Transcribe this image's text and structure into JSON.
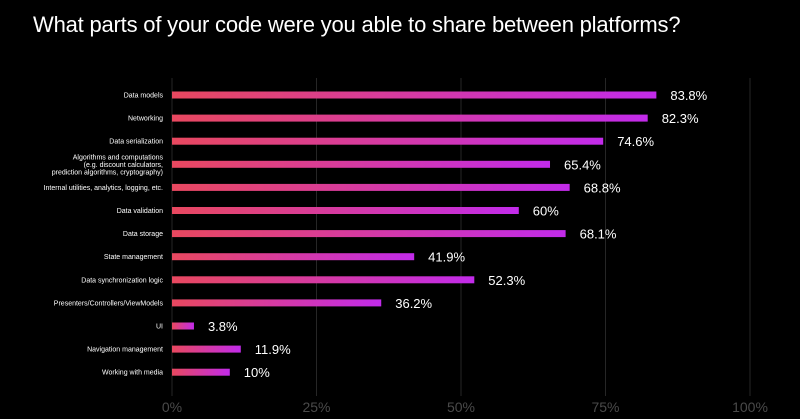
{
  "title": "What parts of your code were you able to share between platforms?",
  "colors": {
    "background": "#000000",
    "bar_start": "#e8485f",
    "bar_end": "#c22bea",
    "grid": "#262626",
    "tick_text": "#4a4a4a",
    "label_text": "#ffffff"
  },
  "chart_data": {
    "type": "bar",
    "orientation": "horizontal",
    "title": "What parts of your code were you able to share between platforms?",
    "categories": [
      [
        "Data models"
      ],
      [
        "Networking"
      ],
      [
        "Data serialization"
      ],
      [
        "Algorithms and computations",
        "(e.g. discount calculators,",
        "prediction algorithms, cryptography)"
      ],
      [
        "Internal utilities, analytics, logging, etc."
      ],
      [
        "Data validation"
      ],
      [
        "Data storage"
      ],
      [
        "State management"
      ],
      [
        "Data synchronization logic"
      ],
      [
        "Presenters/Controllers/ViewModels"
      ],
      [
        "UI"
      ],
      [
        "Navigation management"
      ],
      [
        "Working with media"
      ]
    ],
    "values": [
      83.8,
      82.3,
      74.6,
      65.4,
      68.8,
      60,
      68.1,
      41.9,
      52.3,
      36.2,
      3.8,
      11.9,
      10
    ],
    "value_labels": [
      "83.8%",
      "82.3%",
      "74.6%",
      "65.4%",
      "68.8%",
      "60%",
      "68.1%",
      "41.9%",
      "52.3%",
      "36.2%",
      "3.8%",
      "11.9%",
      "10%"
    ],
    "xlim": [
      0,
      100
    ],
    "x_ticks": [
      0,
      25,
      50,
      75,
      100
    ],
    "x_tick_labels": [
      "0%",
      "25%",
      "50%",
      "75%",
      "100%"
    ],
    "grid": true,
    "xlabel": "",
    "ylabel": ""
  }
}
